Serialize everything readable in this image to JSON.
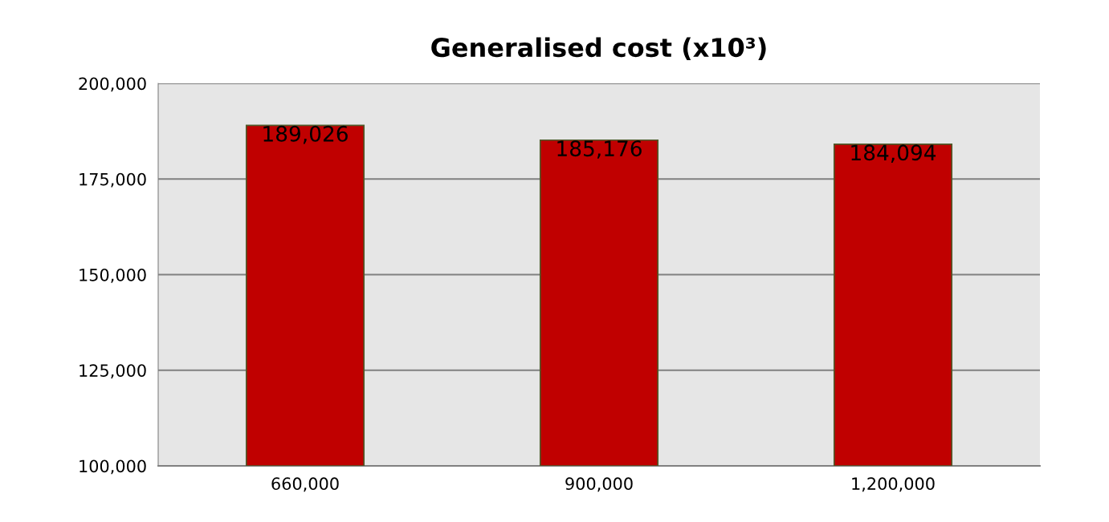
{
  "chart_data": {
    "type": "bar",
    "title": "Generalised cost (x10³)",
    "categories": [
      "660,000",
      "900,000",
      "1,200,000"
    ],
    "series": [
      {
        "color": "#c00000",
        "values": [
          189026,
          185176,
          184094
        ],
        "value_labels": [
          "189,026",
          "185,176",
          "184,094"
        ]
      }
    ],
    "ylim": [
      100000,
      200000
    ],
    "yticks": [
      {
        "value": 100000,
        "label": "100,000"
      },
      {
        "value": 125000,
        "label": "125,000"
      },
      {
        "value": 150000,
        "label": "150,000"
      },
      {
        "value": 175000,
        "label": "175,000"
      },
      {
        "value": 200000,
        "label": "200,000"
      }
    ],
    "grid": "y",
    "legend": false
  }
}
